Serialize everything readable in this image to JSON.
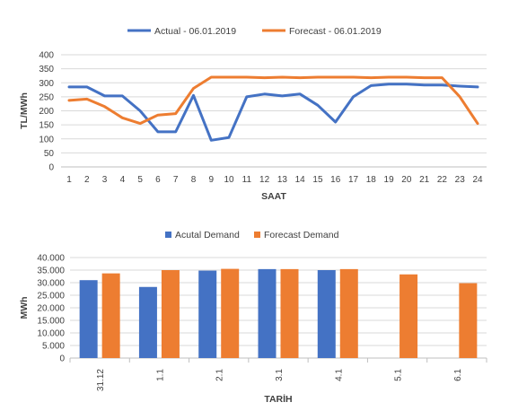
{
  "colors": {
    "actual": "#4472c4",
    "forecast": "#ed7d31",
    "grid": "#d9d9d9",
    "text": "#404040"
  },
  "chart_data": [
    {
      "type": "line",
      "title": "",
      "xlabel": "SAAT",
      "ylabel": "TL/MWh",
      "x": [
        "1",
        "2",
        "3",
        "4",
        "5",
        "6",
        "7",
        "8",
        "9",
        "10",
        "11",
        "12",
        "13",
        "14",
        "15",
        "16",
        "17",
        "18",
        "19",
        "20",
        "21",
        "22",
        "23",
        "24"
      ],
      "ylim": [
        0,
        400
      ],
      "yticks": [
        "0",
        "50",
        "100",
        "150",
        "200",
        "250",
        "300",
        "350",
        "400"
      ],
      "grid": true,
      "legend_position": "top",
      "series": [
        {
          "name": "Actual - 06.01.2019",
          "values": [
            285,
            285,
            253,
            253,
            200,
            125,
            125,
            255,
            95,
            105,
            250,
            260,
            253,
            260,
            220,
            160,
            250,
            290,
            295,
            295,
            292,
            292,
            288,
            285
          ]
        },
        {
          "name": "Forecast - 06.01.2019",
          "values": [
            237,
            242,
            215,
            175,
            155,
            185,
            190,
            280,
            320,
            320,
            320,
            318,
            320,
            318,
            320,
            320,
            320,
            318,
            320,
            320,
            318,
            318,
            250,
            155
          ]
        }
      ]
    },
    {
      "type": "bar",
      "title": "",
      "xlabel": "TARİH",
      "ylabel": "MWh",
      "categories": [
        "31.12",
        "1.1",
        "2.1",
        "3.1",
        "4.1",
        "5.1",
        "6.1"
      ],
      "ylim": [
        0,
        40000
      ],
      "yticks": [
        "0",
        "5.000",
        "10.000",
        "15.000",
        "20.000",
        "25.000",
        "30.000",
        "35.000",
        "40.000"
      ],
      "grid": true,
      "legend_position": "top",
      "series": [
        {
          "name": "Acutal Demand",
          "values": [
            31000,
            28300,
            34800,
            35400,
            35000,
            null,
            null
          ]
        },
        {
          "name": "Forecast Demand",
          "values": [
            33700,
            35000,
            35500,
            35400,
            35400,
            33300,
            29800
          ]
        }
      ]
    }
  ]
}
